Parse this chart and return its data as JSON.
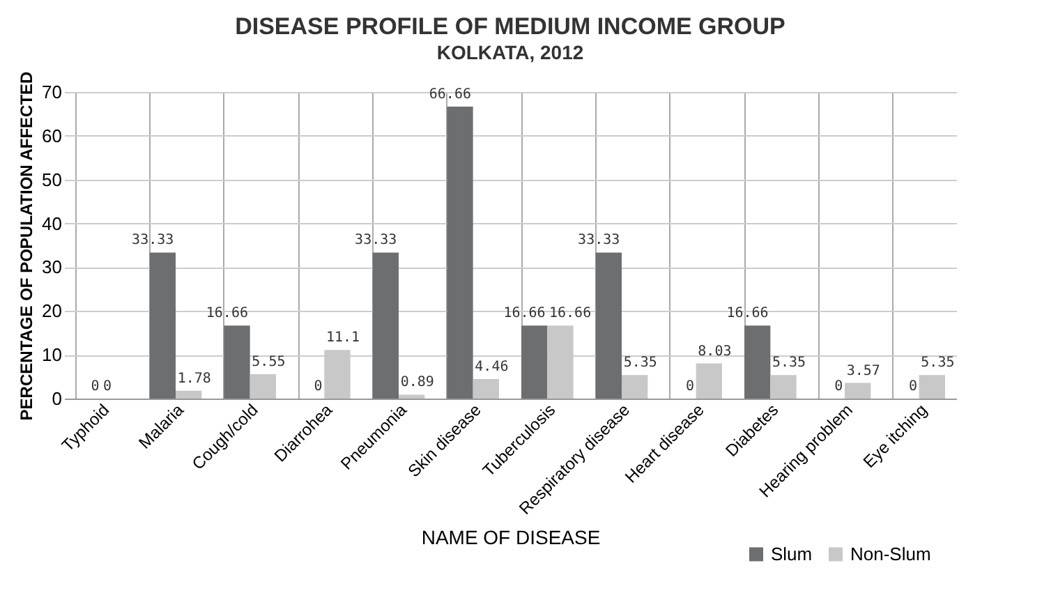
{
  "chart_data": {
    "type": "bar",
    "title": "DISEASE PROFILE OF  MEDIUM INCOME GROUP",
    "subtitle": "KOLKATA, 2012",
    "xlabel": "NAME OF DISEASE",
    "ylabel": "PERCENTAGE OF POPULATION AFFECTED",
    "categories": [
      "Typhoid",
      "Malaria",
      "Cough/cold",
      "Diarrohea",
      "Pneumonia",
      "Skin disease",
      "Tuberculosis",
      "Respiratory disease",
      "Heart disease",
      "Diabetes",
      "Hearing problem",
      "Eye itching"
    ],
    "series": [
      {
        "name": "Slum",
        "color": "#6d6e70",
        "values": [
          0,
          33.33,
          16.66,
          0,
          33.33,
          66.66,
          16.66,
          33.33,
          0,
          16.66,
          0,
          0
        ]
      },
      {
        "name": "Non-Slum",
        "color": "#c8c8c8",
        "values": [
          0,
          1.78,
          5.55,
          11.1,
          0.89,
          4.46,
          16.66,
          5.35,
          8.03,
          5.35,
          3.57,
          5.35
        ]
      }
    ],
    "ylim": [
      0,
      70
    ],
    "yticks": [
      0,
      10,
      20,
      30,
      40,
      50,
      60,
      70
    ],
    "grid": true,
    "data_labels": true,
    "legend": "bottom right"
  }
}
